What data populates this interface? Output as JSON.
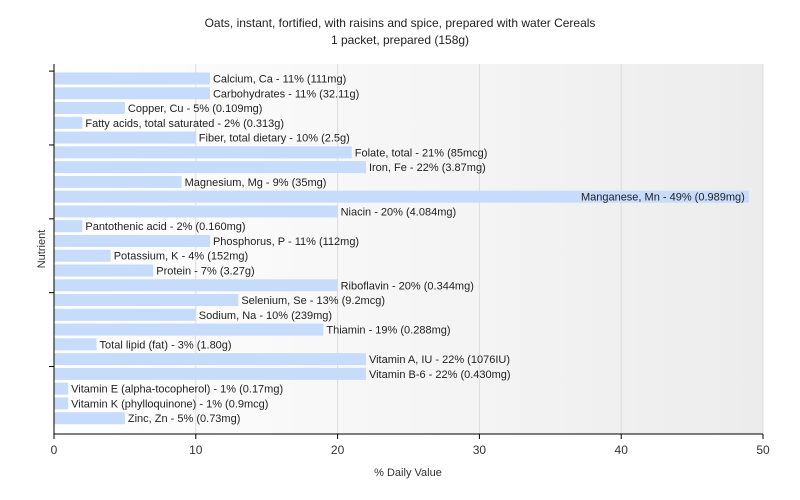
{
  "chart_data": {
    "type": "bar",
    "orientation": "horizontal",
    "title": "Oats, instant, fortified, with raisins and spice, prepared with water Cereals",
    "subtitle": "1 packet, prepared (158g)",
    "xlabel": "% Daily Value",
    "ylabel": "Nutrient",
    "xlim": [
      0,
      50
    ],
    "xticks": [
      0,
      10,
      20,
      30,
      40,
      50
    ],
    "grid": true,
    "bar_color": "#c6dcfa",
    "categories": [
      "Calcium, Ca",
      "Carbohydrates",
      "Copper, Cu",
      "Fatty acids, total saturated",
      "Fiber, total dietary",
      "Folate, total",
      "Iron, Fe",
      "Magnesium, Mg",
      "Manganese, Mn",
      "Niacin",
      "Pantothenic acid",
      "Phosphorus, P",
      "Potassium, K",
      "Protein",
      "Riboflavin",
      "Selenium, Se",
      "Sodium, Na",
      "Thiamin",
      "Total lipid (fat)",
      "Vitamin A, IU",
      "Vitamin B-6",
      "Vitamin E (alpha-tocopherol)",
      "Vitamin K (phylloquinone)",
      "Zinc, Zn"
    ],
    "values": [
      11,
      11,
      5,
      2,
      10,
      21,
      22,
      9,
      49,
      20,
      2,
      11,
      4,
      7,
      20,
      13,
      10,
      19,
      3,
      22,
      22,
      1,
      1,
      5
    ],
    "labels": [
      "Calcium, Ca - 11% (111mg)",
      "Carbohydrates - 11% (32.11g)",
      "Copper, Cu - 5% (0.109mg)",
      "Fatty acids, total saturated - 2% (0.313g)",
      "Fiber, total dietary - 10% (2.5g)",
      "Folate, total - 21% (85mcg)",
      "Iron, Fe - 22% (3.87mg)",
      "Magnesium, Mg - 9% (35mg)",
      "Manganese, Mn - 49% (0.989mg)",
      "Niacin - 20% (4.084mg)",
      "Pantothenic acid - 2% (0.160mg)",
      "Phosphorus, P - 11% (112mg)",
      "Potassium, K - 4% (152mg)",
      "Protein - 7% (3.27g)",
      "Riboflavin - 20% (0.344mg)",
      "Selenium, Se - 13% (9.2mcg)",
      "Sodium, Na - 10% (239mg)",
      "Thiamin - 19% (0.288mg)",
      "Total lipid (fat) - 3% (1.80g)",
      "Vitamin A, IU - 22% (1076IU)",
      "Vitamin B-6 - 22% (0.430mg)",
      "Vitamin E (alpha-tocopherol) - 1% (0.17mg)",
      "Vitamin K (phylloquinone) - 1% (0.9mcg)",
      "Zinc, Zn - 5% (0.73mg)"
    ]
  }
}
